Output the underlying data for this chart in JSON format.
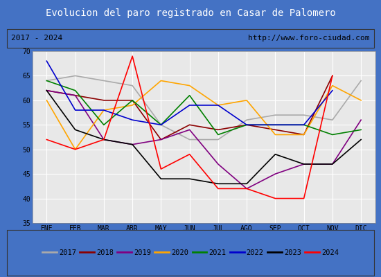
{
  "title": "Evolucion del paro registrado en Casar de Palomero",
  "subtitle_left": "2017 - 2024",
  "subtitle_right": "http://www.foro-ciudad.com",
  "months": [
    "ENE",
    "FEB",
    "MAR",
    "ABR",
    "MAY",
    "JUN",
    "JUL",
    "AGO",
    "SEP",
    "OCT",
    "NOV",
    "DIC"
  ],
  "ylim": [
    35,
    70
  ],
  "yticks": [
    35,
    40,
    45,
    50,
    55,
    60,
    65,
    70
  ],
  "series": {
    "2017": {
      "color": "#aaaaaa",
      "data": [
        64,
        65,
        64,
        63,
        55,
        52,
        52,
        56,
        57,
        57,
        56,
        64
      ]
    },
    "2018": {
      "color": "#8b0000",
      "data": [
        62,
        61,
        60,
        60,
        52,
        55,
        54,
        55,
        54,
        53,
        65,
        null
      ]
    },
    "2019": {
      "color": "#800080",
      "data": [
        62,
        61,
        52,
        51,
        52,
        54,
        47,
        42,
        45,
        47,
        47,
        56
      ]
    },
    "2020": {
      "color": "#ffa500",
      "data": [
        60,
        50,
        58,
        59,
        64,
        63,
        59,
        60,
        53,
        53,
        63,
        60
      ]
    },
    "2021": {
      "color": "#008000",
      "data": [
        64,
        62,
        55,
        60,
        55,
        61,
        53,
        55,
        55,
        55,
        53,
        54
      ]
    },
    "2022": {
      "color": "#0000cd",
      "data": [
        68,
        58,
        58,
        56,
        55,
        59,
        59,
        55,
        55,
        55,
        62,
        null
      ]
    },
    "2023": {
      "color": "#000000",
      "data": [
        62,
        54,
        52,
        51,
        44,
        44,
        43,
        43,
        49,
        47,
        47,
        52
      ]
    },
    "2024": {
      "color": "#ff0000",
      "data": [
        52,
        50,
        52,
        69,
        46,
        49,
        42,
        42,
        40,
        40,
        65,
        null
      ]
    }
  },
  "title_bg_color": "#4472c4",
  "title_font_color": "#ffffff",
  "plot_bg_color": "#e8e8e8",
  "grid_color": "#ffffff",
  "border_color": "#555555",
  "subtitle_bg_color": "#d3d3d3",
  "fig_bg_color": "#4472c4",
  "title_fontsize": 10,
  "subtitle_fontsize": 8,
  "tick_fontsize": 7,
  "legend_fontsize": 7.5
}
